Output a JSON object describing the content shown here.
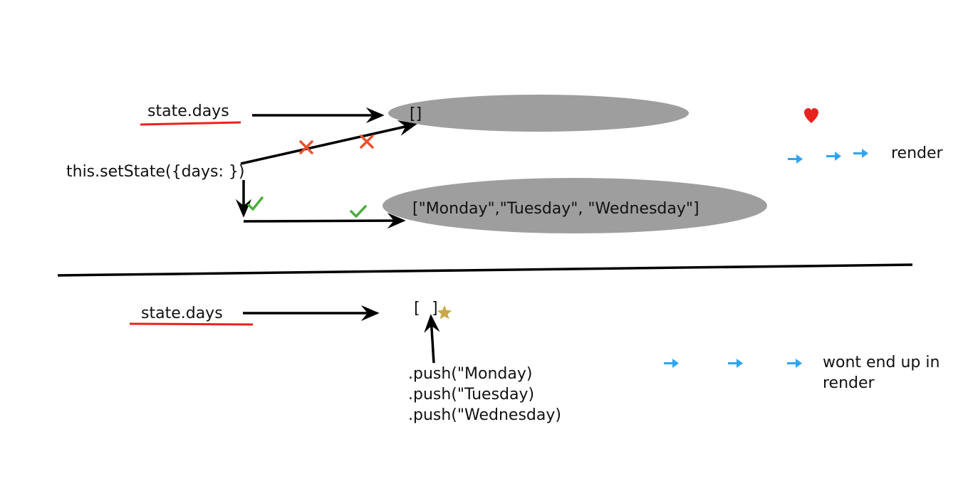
{
  "top": {
    "state_label": "state.days",
    "empty_array": "[]",
    "setstate_call": "this.setState({days: })",
    "new_array": "[\"Monday\",\"Tuesday\", \"Wednesday\"]",
    "right_label": "render"
  },
  "bottom": {
    "state_label": "state.days",
    "empty_array": "[ ]",
    "push_lines": [
      ".push(\"Monday)",
      ".push(\"Tuesday)",
      ".push(\"Wednesday)"
    ],
    "right_label_line1": "wont end up in",
    "right_label_line2": "render"
  },
  "colors": {
    "ellipse": "#9e9e9e",
    "underline": "#e8231f",
    "cross": "#e8532d",
    "check": "#4cae3c",
    "arrow_blue": "#2fa4f5",
    "heart": "#e8231f",
    "star": "#c9a84a"
  },
  "icons": [
    "heart-icon",
    "star-icon",
    "cross-icon",
    "check-icon",
    "right-arrow-icon"
  ]
}
